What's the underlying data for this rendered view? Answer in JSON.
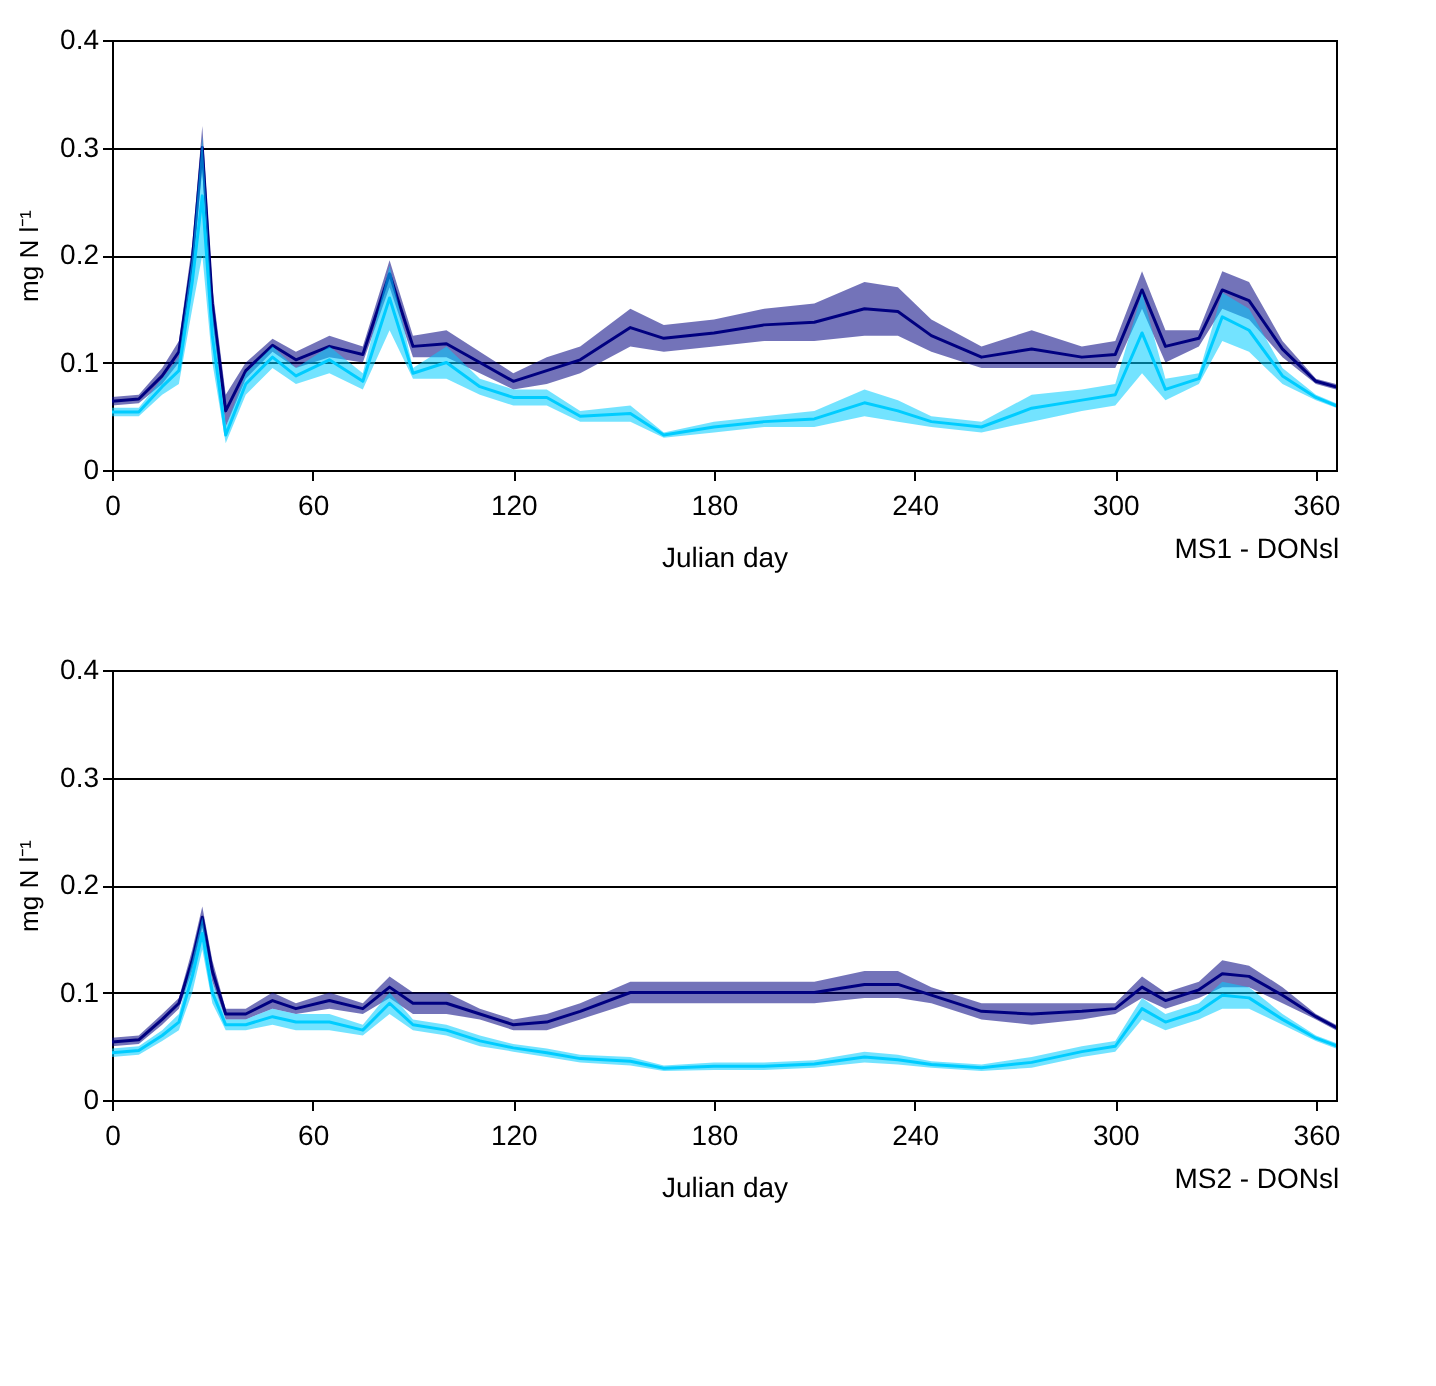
{
  "chart_data": [
    {
      "type": "line",
      "xlabel": "Julian day",
      "ylabel": "mg N l⁻¹",
      "annotations": [
        "MS1 - DONsl"
      ],
      "xlim": [
        0,
        366
      ],
      "xticks": [
        0,
        60,
        120,
        180,
        240,
        300,
        360
      ],
      "ylim": [
        0,
        0.4
      ],
      "yticks": [
        0,
        0.1,
        0.2,
        0.3,
        0.4
      ],
      "grid": "y",
      "legend": false,
      "x": [
        0,
        8,
        15,
        20,
        24,
        27,
        30,
        34,
        40,
        48,
        55,
        65,
        75,
        83,
        90,
        100,
        110,
        120,
        130,
        140,
        155,
        165,
        180,
        195,
        210,
        225,
        235,
        245,
        260,
        275,
        290,
        300,
        308,
        315,
        325,
        332,
        340,
        350,
        360,
        366
      ],
      "series": [
        {
          "color": "#000080",
          "values": [
            0.064,
            0.066,
            0.0875,
            0.11,
            0.195,
            0.3,
            0.155,
            0.055,
            0.0925,
            0.116,
            0.1025,
            0.115,
            0.1075,
            0.1825,
            0.115,
            0.1175,
            0.1,
            0.0825,
            0.0925,
            0.1025,
            0.1325,
            0.1225,
            0.1275,
            0.135,
            0.1375,
            0.15,
            0.1475,
            0.125,
            0.105,
            0.1125,
            0.105,
            0.1075,
            0.1675,
            0.115,
            0.1225,
            0.1675,
            0.1575,
            0.1125,
            0.0825,
            0.0775
          ],
          "lower": [
            0.06,
            0.062,
            0.08,
            0.1,
            0.18,
            0.28,
            0.14,
            0.04,
            0.085,
            0.11,
            0.095,
            0.105,
            0.1,
            0.17,
            0.105,
            0.105,
            0.09,
            0.075,
            0.08,
            0.09,
            0.115,
            0.11,
            0.115,
            0.12,
            0.12,
            0.125,
            0.125,
            0.11,
            0.095,
            0.095,
            0.095,
            0.095,
            0.15,
            0.1,
            0.115,
            0.15,
            0.14,
            0.105,
            0.08,
            0.075
          ],
          "upper": [
            0.068,
            0.07,
            0.095,
            0.12,
            0.21,
            0.32,
            0.17,
            0.07,
            0.1,
            0.122,
            0.11,
            0.125,
            0.115,
            0.195,
            0.125,
            0.13,
            0.11,
            0.09,
            0.105,
            0.115,
            0.15,
            0.135,
            0.14,
            0.15,
            0.155,
            0.175,
            0.17,
            0.14,
            0.115,
            0.13,
            0.115,
            0.12,
            0.185,
            0.13,
            0.13,
            0.185,
            0.175,
            0.12,
            0.085,
            0.08
          ]
        },
        {
          "color": "#00ccff",
          "values": [
            0.054,
            0.054,
            0.0775,
            0.0925,
            0.175,
            0.255,
            0.125,
            0.0325,
            0.08,
            0.105,
            0.0875,
            0.1025,
            0.0825,
            0.16,
            0.09,
            0.1,
            0.0775,
            0.0675,
            0.0675,
            0.05,
            0.0525,
            0.0325,
            0.04,
            0.045,
            0.0475,
            0.0625,
            0.055,
            0.045,
            0.04,
            0.0575,
            0.065,
            0.07,
            0.1275,
            0.075,
            0.085,
            0.1425,
            0.13,
            0.0875,
            0.0675,
            0.06
          ],
          "lower": [
            0.05,
            0.05,
            0.07,
            0.08,
            0.15,
            0.2,
            0.1,
            0.025,
            0.07,
            0.095,
            0.08,
            0.09,
            0.075,
            0.13,
            0.085,
            0.085,
            0.07,
            0.06,
            0.06,
            0.045,
            0.045,
            0.03,
            0.035,
            0.04,
            0.04,
            0.05,
            0.045,
            0.04,
            0.035,
            0.045,
            0.055,
            0.06,
            0.09,
            0.065,
            0.08,
            0.12,
            0.11,
            0.08,
            0.065,
            0.058
          ],
          "upper": [
            0.058,
            0.058,
            0.085,
            0.105,
            0.2,
            0.31,
            0.15,
            0.04,
            0.09,
            0.115,
            0.095,
            0.115,
            0.09,
            0.19,
            0.095,
            0.115,
            0.085,
            0.075,
            0.075,
            0.055,
            0.06,
            0.035,
            0.045,
            0.05,
            0.055,
            0.075,
            0.065,
            0.05,
            0.045,
            0.07,
            0.075,
            0.08,
            0.165,
            0.085,
            0.09,
            0.165,
            0.15,
            0.095,
            0.07,
            0.062
          ]
        }
      ]
    },
    {
      "type": "line",
      "xlabel": "Julian day",
      "ylabel": "mg N l⁻¹",
      "annotations": [
        "MS2 - DONsl"
      ],
      "xlim": [
        0,
        366
      ],
      "xticks": [
        0,
        60,
        120,
        180,
        240,
        300,
        360
      ],
      "ylim": [
        0,
        0.4
      ],
      "yticks": [
        0,
        0.1,
        0.2,
        0.3,
        0.4
      ],
      "grid": "y",
      "legend": false,
      "x": [
        0,
        8,
        15,
        20,
        24,
        27,
        30,
        34,
        40,
        48,
        55,
        65,
        75,
        83,
        90,
        100,
        110,
        120,
        130,
        140,
        155,
        165,
        180,
        195,
        210,
        225,
        235,
        245,
        260,
        275,
        290,
        300,
        308,
        315,
        325,
        332,
        340,
        350,
        360,
        366
      ],
      "series": [
        {
          "color": "#000080",
          "values": [
            0.054,
            0.056,
            0.075,
            0.09,
            0.13,
            0.17,
            0.12,
            0.08,
            0.08,
            0.0925,
            0.085,
            0.0925,
            0.085,
            0.105,
            0.09,
            0.09,
            0.08,
            0.07,
            0.0725,
            0.0825,
            0.1,
            0.1,
            0.1,
            0.1,
            0.1,
            0.1075,
            0.1075,
            0.0975,
            0.0825,
            0.08,
            0.0825,
            0.085,
            0.105,
            0.0925,
            0.1025,
            0.1175,
            0.115,
            0.0975,
            0.0775,
            0.0675
          ],
          "lower": [
            0.05,
            0.052,
            0.07,
            0.085,
            0.12,
            0.16,
            0.11,
            0.075,
            0.075,
            0.085,
            0.08,
            0.085,
            0.08,
            0.095,
            0.08,
            0.08,
            0.075,
            0.065,
            0.065,
            0.075,
            0.09,
            0.09,
            0.09,
            0.09,
            0.09,
            0.095,
            0.095,
            0.09,
            0.075,
            0.07,
            0.075,
            0.08,
            0.095,
            0.085,
            0.095,
            0.105,
            0.105,
            0.09,
            0.075,
            0.065
          ],
          "upper": [
            0.058,
            0.06,
            0.08,
            0.095,
            0.14,
            0.18,
            0.13,
            0.085,
            0.085,
            0.1,
            0.09,
            0.1,
            0.09,
            0.115,
            0.1,
            0.1,
            0.085,
            0.075,
            0.08,
            0.09,
            0.11,
            0.11,
            0.11,
            0.11,
            0.11,
            0.12,
            0.12,
            0.105,
            0.09,
            0.09,
            0.09,
            0.09,
            0.115,
            0.1,
            0.11,
            0.13,
            0.125,
            0.105,
            0.08,
            0.07
          ]
        },
        {
          "color": "#00ccff",
          "values": [
            0.044,
            0.046,
            0.06,
            0.0725,
            0.115,
            0.155,
            0.1,
            0.07,
            0.07,
            0.0775,
            0.0725,
            0.0725,
            0.065,
            0.09,
            0.07,
            0.065,
            0.055,
            0.0485,
            0.044,
            0.0385,
            0.036,
            0.0295,
            0.0315,
            0.0315,
            0.0335,
            0.04,
            0.0375,
            0.033,
            0.03,
            0.035,
            0.045,
            0.05,
            0.085,
            0.0725,
            0.0825,
            0.0975,
            0.095,
            0.075,
            0.0575,
            0.0505
          ],
          "lower": [
            0.04,
            0.042,
            0.055,
            0.065,
            0.1,
            0.14,
            0.09,
            0.065,
            0.065,
            0.07,
            0.065,
            0.065,
            0.06,
            0.08,
            0.065,
            0.06,
            0.05,
            0.045,
            0.04,
            0.035,
            0.032,
            0.027,
            0.028,
            0.028,
            0.03,
            0.035,
            0.033,
            0.03,
            0.027,
            0.03,
            0.04,
            0.045,
            0.075,
            0.065,
            0.075,
            0.085,
            0.085,
            0.07,
            0.055,
            0.048
          ],
          "upper": [
            0.048,
            0.05,
            0.065,
            0.08,
            0.13,
            0.17,
            0.11,
            0.075,
            0.075,
            0.085,
            0.08,
            0.08,
            0.07,
            0.1,
            0.075,
            0.07,
            0.06,
            0.052,
            0.048,
            0.042,
            0.04,
            0.032,
            0.035,
            0.035,
            0.037,
            0.045,
            0.042,
            0.036,
            0.033,
            0.04,
            0.05,
            0.055,
            0.095,
            0.08,
            0.09,
            0.11,
            0.105,
            0.08,
            0.06,
            0.053
          ]
        }
      ]
    }
  ]
}
